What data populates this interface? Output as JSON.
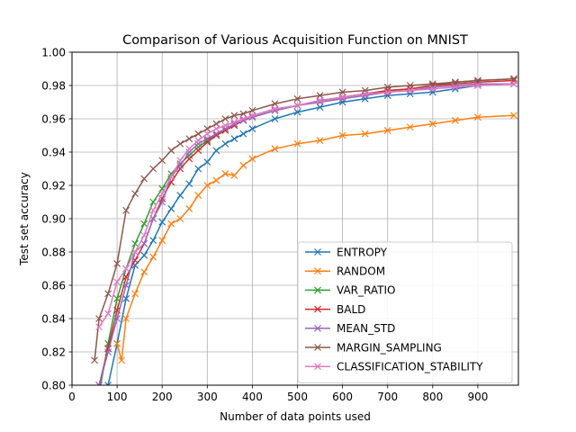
{
  "chart_data": {
    "type": "line",
    "title": "Comparison of Various Acquisition Function on MNIST",
    "xlabel": "Number of data points used",
    "ylabel": "Test set accuracy",
    "xlim": [
      0,
      990
    ],
    "ylim": [
      0.8,
      1.0
    ],
    "xticks": [
      0,
      100,
      200,
      300,
      400,
      500,
      600,
      700,
      800,
      900
    ],
    "yticks": [
      0.8,
      0.82,
      0.84,
      0.86,
      0.88,
      0.9,
      0.92,
      0.94,
      0.96,
      0.98,
      1.0
    ],
    "grid": true,
    "legend_position": "lower-right",
    "marker": "x",
    "series": [
      {
        "name": "ENTROPY",
        "color": "#1f77b4",
        "x": [
          60,
          80,
          100,
          120,
          140,
          160,
          180,
          200,
          220,
          240,
          260,
          280,
          300,
          320,
          340,
          360,
          380,
          400,
          450,
          500,
          550,
          600,
          650,
          700,
          750,
          800,
          850,
          900,
          980
        ],
        "y": [
          0.79,
          0.8,
          0.825,
          0.852,
          0.872,
          0.878,
          0.887,
          0.898,
          0.906,
          0.914,
          0.921,
          0.93,
          0.934,
          0.941,
          0.945,
          0.948,
          0.951,
          0.954,
          0.96,
          0.964,
          0.967,
          0.97,
          0.972,
          0.974,
          0.975,
          0.976,
          0.978,
          0.98,
          0.981
        ]
      },
      {
        "name": "RANDOM",
        "color": "#ff7f0e",
        "x": [
          100,
          110,
          120,
          140,
          160,
          180,
          200,
          220,
          240,
          260,
          280,
          300,
          320,
          340,
          360,
          380,
          400,
          450,
          500,
          550,
          600,
          650,
          700,
          750,
          800,
          850,
          900,
          980
        ],
        "y": [
          0.825,
          0.815,
          0.84,
          0.855,
          0.868,
          0.877,
          0.887,
          0.897,
          0.9,
          0.906,
          0.914,
          0.92,
          0.923,
          0.927,
          0.926,
          0.932,
          0.936,
          0.942,
          0.945,
          0.947,
          0.95,
          0.951,
          0.953,
          0.955,
          0.957,
          0.959,
          0.961,
          0.962
        ]
      },
      {
        "name": "VAR_RATIO",
        "color": "#2ca02c",
        "x": [
          60,
          80,
          100,
          120,
          140,
          160,
          180,
          200,
          220,
          240,
          260,
          280,
          300,
          320,
          340,
          360,
          380,
          400,
          450,
          500,
          550,
          600,
          650,
          700,
          750,
          800,
          850,
          900,
          980
        ],
        "y": [
          0.795,
          0.825,
          0.852,
          0.87,
          0.885,
          0.897,
          0.91,
          0.918,
          0.927,
          0.933,
          0.938,
          0.943,
          0.947,
          0.951,
          0.954,
          0.957,
          0.959,
          0.961,
          0.965,
          0.968,
          0.971,
          0.973,
          0.975,
          0.977,
          0.978,
          0.98,
          0.982,
          0.983,
          0.984
        ]
      },
      {
        "name": "BALD",
        "color": "#d62728",
        "x": [
          60,
          80,
          100,
          120,
          140,
          160,
          180,
          200,
          220,
          240,
          260,
          280,
          300,
          320,
          340,
          360,
          380,
          400,
          450,
          500,
          550,
          600,
          650,
          700,
          750,
          800,
          850,
          900,
          980
        ],
        "y": [
          0.8,
          0.822,
          0.845,
          0.865,
          0.875,
          0.885,
          0.9,
          0.912,
          0.922,
          0.93,
          0.936,
          0.941,
          0.946,
          0.95,
          0.953,
          0.956,
          0.959,
          0.961,
          0.965,
          0.968,
          0.971,
          0.973,
          0.975,
          0.977,
          0.978,
          0.98,
          0.981,
          0.982,
          0.983
        ]
      },
      {
        "name": "MEAN_STD",
        "color": "#9467bd",
        "x": [
          60,
          80,
          100,
          120,
          140,
          160,
          180,
          200,
          220,
          240,
          260,
          280,
          300,
          320,
          340,
          360,
          380,
          400,
          450,
          500,
          550,
          600,
          650,
          700,
          750,
          800,
          850,
          900,
          980
        ],
        "y": [
          0.8,
          0.82,
          0.84,
          0.86,
          0.88,
          0.885,
          0.9,
          0.91,
          0.925,
          0.932,
          0.94,
          0.945,
          0.948,
          0.951,
          0.954,
          0.957,
          0.959,
          0.961,
          0.965,
          0.968,
          0.97,
          0.972,
          0.974,
          0.976,
          0.977,
          0.979,
          0.98,
          0.981,
          0.981
        ]
      },
      {
        "name": "MARGIN_SAMPLING",
        "color": "#8c564b",
        "x": [
          50,
          60,
          80,
          100,
          120,
          140,
          160,
          180,
          200,
          220,
          240,
          260,
          280,
          300,
          320,
          340,
          360,
          380,
          400,
          450,
          500,
          550,
          600,
          650,
          700,
          750,
          800,
          850,
          900,
          980
        ],
        "y": [
          0.815,
          0.84,
          0.855,
          0.873,
          0.905,
          0.915,
          0.924,
          0.93,
          0.935,
          0.941,
          0.945,
          0.948,
          0.951,
          0.954,
          0.957,
          0.96,
          0.962,
          0.963,
          0.965,
          0.969,
          0.972,
          0.974,
          0.976,
          0.977,
          0.979,
          0.98,
          0.981,
          0.982,
          0.983,
          0.984
        ]
      },
      {
        "name": "CLASSIFICATION_STABILITY",
        "color": "#e377c2",
        "x": [
          60,
          80,
          100,
          120,
          140,
          160,
          180,
          200,
          220,
          240,
          260,
          280,
          300,
          320,
          340,
          360,
          380,
          400,
          450,
          500,
          550,
          600,
          650,
          700,
          750,
          800,
          850,
          900,
          980
        ],
        "y": [
          0.835,
          0.843,
          0.862,
          0.87,
          0.88,
          0.89,
          0.905,
          0.915,
          0.925,
          0.935,
          0.942,
          0.947,
          0.951,
          0.954,
          0.956,
          0.958,
          0.96,
          0.962,
          0.966,
          0.968,
          0.971,
          0.973,
          0.975,
          0.976,
          0.977,
          0.978,
          0.979,
          0.98,
          0.981
        ]
      }
    ]
  }
}
